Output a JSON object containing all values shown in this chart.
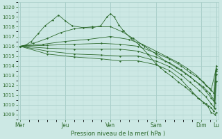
{
  "bg_color": "#cce8e4",
  "plot_bg_color": "#cce8e4",
  "grid_color_major": "#aacfca",
  "grid_color_minor": "#bbdbd7",
  "line_color": "#2d6a2d",
  "xlabel": "Pression niveau de la mer( hPa )",
  "xtick_labels": [
    "Mer",
    "Jeu",
    "Ven",
    "Sam",
    "Dim",
    "Lu"
  ],
  "xtick_positions": [
    0,
    1,
    2,
    3,
    4,
    4.33
  ],
  "ylim_min": 1008.5,
  "ylim_max": 1020.5,
  "xlim_min": -0.05,
  "xlim_max": 4.38,
  "yticks": [
    1009,
    1010,
    1011,
    1012,
    1013,
    1014,
    1015,
    1016,
    1017,
    1018,
    1019,
    1020
  ],
  "series": [
    [
      [
        0.0,
        1016.0
      ],
      [
        0.12,
        1016.1
      ],
      [
        0.25,
        1016.5
      ],
      [
        0.4,
        1017.3
      ],
      [
        0.55,
        1018.1
      ],
      [
        0.72,
        1018.7
      ],
      [
        0.85,
        1019.2
      ],
      [
        1.0,
        1018.6
      ],
      [
        1.15,
        1018.1
      ],
      [
        1.4,
        1017.9
      ],
      [
        1.6,
        1017.9
      ],
      [
        1.78,
        1018.1
      ],
      [
        1.92,
        1019.0
      ],
      [
        2.0,
        1019.35
      ],
      [
        2.08,
        1019.0
      ],
      [
        2.18,
        1018.2
      ],
      [
        2.28,
        1017.6
      ],
      [
        2.45,
        1016.8
      ],
      [
        2.62,
        1016.2
      ],
      [
        2.82,
        1015.2
      ],
      [
        3.0,
        1014.2
      ],
      [
        3.1,
        1013.8
      ],
      [
        3.2,
        1013.4
      ],
      [
        3.35,
        1012.9
      ],
      [
        3.5,
        1012.3
      ],
      [
        3.65,
        1011.8
      ],
      [
        3.8,
        1011.2
      ],
      [
        3.93,
        1010.7
      ],
      [
        4.05,
        1010.2
      ],
      [
        4.15,
        1009.8
      ],
      [
        4.22,
        1009.2
      ],
      [
        4.3,
        1009.0
      ],
      [
        4.33,
        1009.2
      ]
    ],
    [
      [
        0.0,
        1016.0
      ],
      [
        0.3,
        1016.3
      ],
      [
        0.6,
        1016.8
      ],
      [
        0.9,
        1017.4
      ],
      [
        1.2,
        1017.8
      ],
      [
        1.6,
        1018.0
      ],
      [
        2.0,
        1018.0
      ],
      [
        2.25,
        1017.5
      ],
      [
        2.5,
        1016.8
      ],
      [
        2.75,
        1016.0
      ],
      [
        3.0,
        1015.2
      ],
      [
        3.2,
        1014.5
      ],
      [
        3.45,
        1013.8
      ],
      [
        3.65,
        1013.2
      ],
      [
        3.85,
        1012.5
      ],
      [
        4.05,
        1011.8
      ],
      [
        4.18,
        1011.2
      ],
      [
        4.28,
        1010.5
      ],
      [
        4.33,
        1013.5
      ]
    ],
    [
      [
        0.0,
        1016.0
      ],
      [
        0.5,
        1016.2
      ],
      [
        1.0,
        1016.5
      ],
      [
        1.5,
        1016.7
      ],
      [
        2.0,
        1017.0
      ],
      [
        2.4,
        1016.7
      ],
      [
        2.7,
        1016.2
      ],
      [
        3.0,
        1015.5
      ],
      [
        3.25,
        1014.9
      ],
      [
        3.5,
        1014.3
      ],
      [
        3.7,
        1013.7
      ],
      [
        3.9,
        1013.0
      ],
      [
        4.05,
        1012.3
      ],
      [
        4.18,
        1011.7
      ],
      [
        4.28,
        1011.2
      ],
      [
        4.33,
        1014.0
      ]
    ],
    [
      [
        0.0,
        1016.0
      ],
      [
        0.6,
        1016.1
      ],
      [
        1.2,
        1016.2
      ],
      [
        1.8,
        1016.3
      ],
      [
        2.2,
        1016.2
      ],
      [
        2.6,
        1016.0
      ],
      [
        3.0,
        1015.3
      ],
      [
        3.3,
        1014.7
      ],
      [
        3.55,
        1014.0
      ],
      [
        3.75,
        1013.3
      ],
      [
        3.95,
        1012.7
      ],
      [
        4.1,
        1012.0
      ],
      [
        4.22,
        1011.5
      ],
      [
        4.33,
        1013.7
      ]
    ],
    [
      [
        0.0,
        1016.0
      ],
      [
        0.6,
        1015.8
      ],
      [
        1.2,
        1015.7
      ],
      [
        1.8,
        1015.7
      ],
      [
        2.2,
        1015.7
      ],
      [
        2.6,
        1015.5
      ],
      [
        3.0,
        1014.9
      ],
      [
        3.3,
        1014.3
      ],
      [
        3.55,
        1013.6
      ],
      [
        3.75,
        1012.9
      ],
      [
        3.95,
        1012.1
      ],
      [
        4.1,
        1011.4
      ],
      [
        4.22,
        1010.7
      ],
      [
        4.3,
        1010.2
      ],
      [
        4.33,
        1013.1
      ]
    ],
    [
      [
        0.0,
        1016.0
      ],
      [
        0.6,
        1015.5
      ],
      [
        1.2,
        1015.2
      ],
      [
        1.8,
        1015.1
      ],
      [
        2.2,
        1015.0
      ],
      [
        2.6,
        1015.0
      ],
      [
        3.0,
        1014.5
      ],
      [
        3.3,
        1013.9
      ],
      [
        3.55,
        1013.1
      ],
      [
        3.75,
        1012.3
      ],
      [
        3.95,
        1011.5
      ],
      [
        4.1,
        1010.8
      ],
      [
        4.22,
        1010.1
      ],
      [
        4.3,
        1009.6
      ],
      [
        4.33,
        1012.4
      ]
    ],
    [
      [
        0.0,
        1016.0
      ],
      [
        0.6,
        1015.2
      ],
      [
        1.2,
        1014.9
      ],
      [
        1.8,
        1014.7
      ],
      [
        2.2,
        1014.5
      ],
      [
        2.6,
        1014.5
      ],
      [
        3.0,
        1014.1
      ],
      [
        3.3,
        1013.5
      ],
      [
        3.55,
        1012.6
      ],
      [
        3.75,
        1011.6
      ],
      [
        3.95,
        1010.6
      ],
      [
        4.1,
        1010.1
      ],
      [
        4.22,
        1009.7
      ],
      [
        4.28,
        1009.3
      ],
      [
        4.33,
        1013.6
      ]
    ]
  ]
}
